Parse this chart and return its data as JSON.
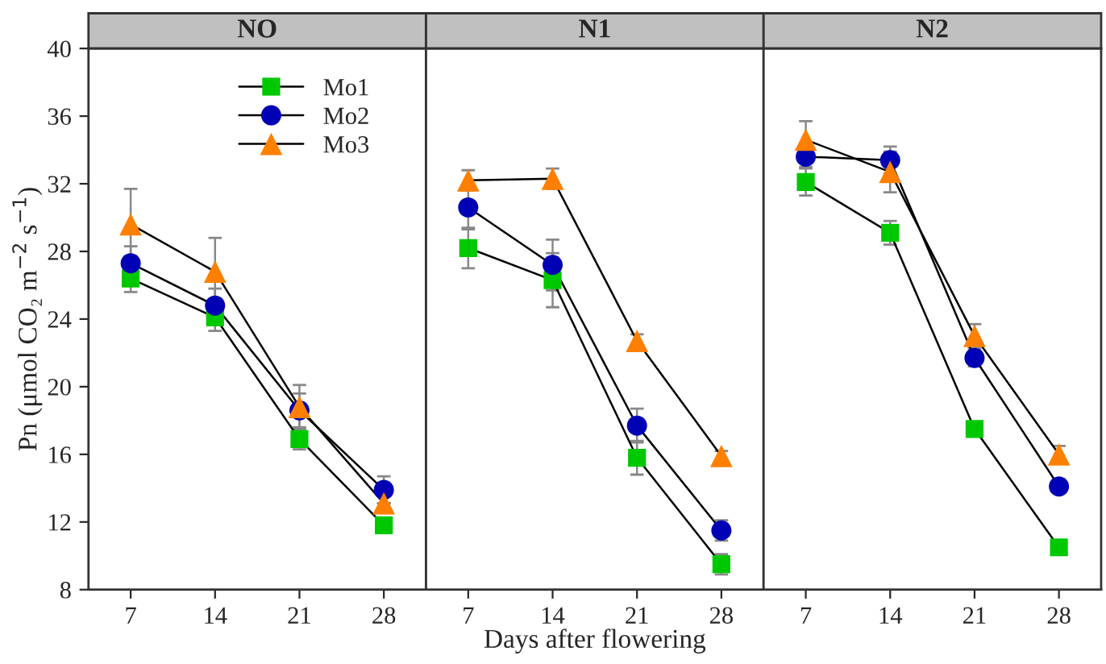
{
  "chart_data": [
    {
      "type": "line",
      "title": "NO",
      "ylabel": "Pn (μmol CO₂ m$^{−2}$ s$^{−1}$)",
      "x": [
        7,
        14,
        21,
        28
      ],
      "xlim": [
        3.5,
        31.5
      ],
      "ylim": [
        8,
        40
      ],
      "xticks": [
        7,
        14,
        21,
        28
      ],
      "yticks": [
        8,
        12,
        16,
        20,
        24,
        28,
        32,
        36,
        40
      ],
      "grid": false,
      "legend": "top right",
      "series": [
        {
          "name": "Mo1",
          "color": "#00c800",
          "marker": "square",
          "values": [
            26.4,
            24.1,
            16.9,
            11.8
          ],
          "errors": [
            0.8,
            0.8,
            0.6,
            null
          ]
        },
        {
          "name": "Mo2",
          "color": "#0000b4",
          "marker": "circle",
          "values": [
            27.3,
            24.8,
            18.6,
            13.9
          ],
          "errors": [
            1.0,
            1.0,
            1.0,
            0.8
          ]
        },
        {
          "name": "Mo3",
          "color": "#ff7f00",
          "marker": "triangle",
          "values": [
            29.6,
            26.8,
            18.8,
            13.1
          ],
          "errors": [
            2.1,
            2.0,
            1.3,
            null
          ]
        }
      ]
    },
    {
      "type": "line",
      "title": "N1",
      "xlabel": "Days after flowering",
      "x": [
        7,
        14,
        21,
        28
      ],
      "xlim": [
        3.5,
        31.5
      ],
      "ylim": [
        8,
        40
      ],
      "xticks": [
        7,
        14,
        21,
        28
      ],
      "yticks": [
        8,
        12,
        16,
        20,
        24,
        28,
        32,
        36,
        40
      ],
      "grid": false,
      "tick_labels": "x",
      "series": [
        {
          "color": "#00c800",
          "marker": "square",
          "values": [
            28.2,
            26.3,
            15.8,
            9.5
          ],
          "errors": [
            1.2,
            1.6,
            1.0,
            0.6
          ]
        },
        {
          "color": "#0000b4",
          "marker": "circle",
          "values": [
            30.6,
            27.2,
            17.7,
            11.5
          ],
          "errors": [
            1.3,
            1.5,
            1.0,
            0.6
          ]
        },
        {
          "color": "#ff7f00",
          "marker": "triangle",
          "values": [
            32.2,
            32.3,
            22.7,
            15.9
          ],
          "errors": [
            0.6,
            0.6,
            0.4,
            0.3
          ]
        }
      ]
    },
    {
      "type": "line",
      "title": "N2",
      "x": [
        7,
        14,
        21,
        28
      ],
      "xlim": [
        3.5,
        31.5
      ],
      "ylim": [
        8,
        40
      ],
      "xticks": [
        7,
        14,
        21,
        28
      ],
      "yticks": [
        8,
        12,
        16,
        20,
        24,
        28,
        32,
        36,
        40
      ],
      "grid": false,
      "tick_labels": "x",
      "series": [
        {
          "color": "#00c800",
          "marker": "square",
          "values": [
            32.1,
            29.1,
            17.5,
            10.5
          ],
          "errors": [
            0.8,
            0.7,
            null,
            null
          ]
        },
        {
          "color": "#0000b4",
          "marker": "circle",
          "values": [
            33.6,
            33.4,
            21.7,
            14.1
          ],
          "errors": [
            0.6,
            0.8,
            0.5,
            null
          ]
        },
        {
          "color": "#ff7f00",
          "marker": "triangle",
          "values": [
            34.6,
            32.7,
            23.0,
            16.0
          ],
          "errors": [
            1.1,
            1.2,
            0.7,
            0.5
          ]
        }
      ]
    }
  ]
}
